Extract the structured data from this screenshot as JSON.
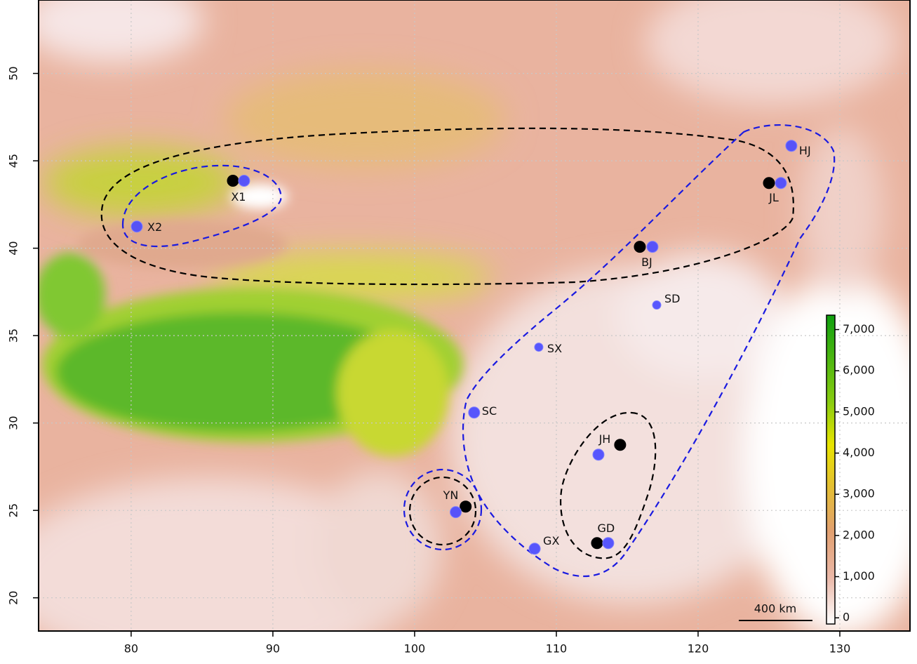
{
  "chart_data": {
    "type": "map",
    "xlim": [
      73.47,
      134.95
    ],
    "ylim": [
      18.1,
      54.2
    ],
    "xticks": [
      80,
      90,
      100,
      110,
      120,
      130
    ],
    "yticks": [
      20,
      25,
      30,
      35,
      40,
      45,
      50
    ],
    "grid": true,
    "series": [
      {
        "color": "#000000",
        "x": [
          87.18,
          125.0,
          115.89,
          103.6,
          114.5,
          112.87
        ],
        "y": [
          43.86,
          43.73,
          40.08,
          25.22,
          28.75,
          23.13
        ]
      },
      {
        "color": "#4a4aff",
        "x": [
          87.97,
          80.4,
          125.84,
          126.58,
          116.78,
          117.08,
          108.76,
          104.2,
          102.9,
          112.97,
          113.66,
          108.47
        ],
        "y": [
          43.86,
          41.24,
          43.73,
          45.86,
          40.08,
          36.75,
          34.34,
          30.6,
          24.9,
          28.19,
          23.13,
          22.81
        ],
        "sizes": [
          8,
          8,
          8,
          8,
          8,
          6,
          6,
          8,
          8,
          8,
          8,
          8
        ],
        "labels": [
          "X1",
          "X2",
          "JL",
          "HJ",
          "BJ",
          "SD",
          "SX",
          "SC",
          "YN",
          "JH",
          "GD",
          "GX"
        ]
      }
    ],
    "colorbar": {
      "lim": [
        -150,
        7350
      ],
      "ticks": [
        0,
        {
          "value": 1000,
          "label": "1,000"
        },
        {
          "value": 2000,
          "label": "2,000"
        },
        {
          "value": 3000,
          "label": "3,000"
        },
        {
          "value": 4000,
          "label": "4,000"
        },
        {
          "value": 5000,
          "label": "5,000"
        },
        {
          "value": 6000,
          "label": "6,000"
        },
        {
          "value": 7000,
          "label": "7,000"
        }
      ]
    },
    "scale_bar": {
      "label": "400 km"
    }
  }
}
